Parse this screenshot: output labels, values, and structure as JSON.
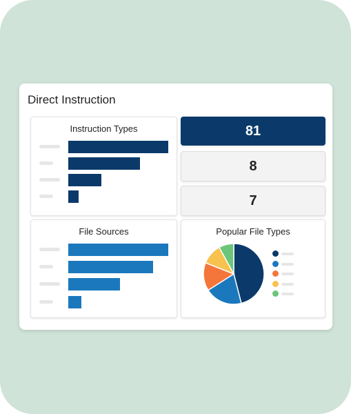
{
  "dashboard": {
    "title": "Direct Instruction"
  },
  "instruction_types": {
    "title": "Instruction Types",
    "bars": [
      {
        "value": 100,
        "color": "#0b3a6a"
      },
      {
        "value": 72,
        "color": "#0b3a6a"
      },
      {
        "value": 33,
        "color": "#0b3a6a"
      },
      {
        "value": 10,
        "color": "#0b3a6a"
      }
    ]
  },
  "stats": [
    {
      "value": "81"
    },
    {
      "value": "8"
    },
    {
      "value": "7"
    }
  ],
  "file_sources": {
    "title": "File Sources",
    "bars": [
      {
        "value": 100,
        "color": "#1b78bd"
      },
      {
        "value": 85,
        "color": "#1b78bd"
      },
      {
        "value": 52,
        "color": "#1b78bd"
      },
      {
        "value": 13,
        "color": "#1b78bd"
      }
    ]
  },
  "popular_file_types": {
    "title": "Popular File Types",
    "chart_data": {
      "type": "pie",
      "values": [
        46,
        20,
        15,
        11,
        8
      ],
      "colors": [
        "#0b3a6a",
        "#1b78bd",
        "#f4763b",
        "#f8c24e",
        "#6cc57a"
      ]
    }
  }
}
